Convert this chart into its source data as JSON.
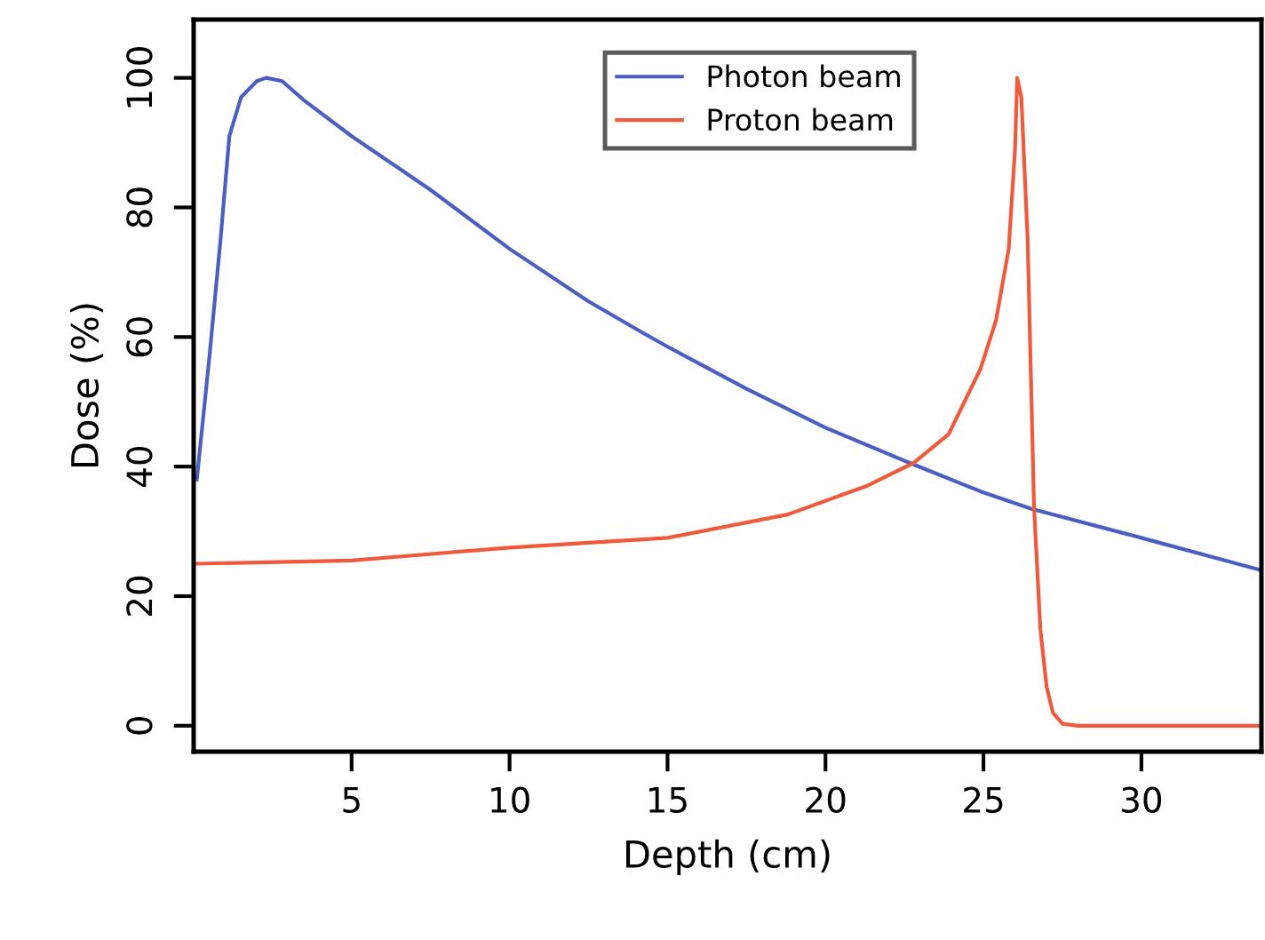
{
  "chart_data": {
    "type": "line",
    "xlabel": "Depth (cm)",
    "ylabel": "Dose (%)",
    "xlim": [
      0,
      33.8
    ],
    "ylim": [
      -4,
      109
    ],
    "xticks": [
      5,
      10,
      15,
      20,
      25,
      30
    ],
    "yticks": [
      0,
      20,
      40,
      60,
      80,
      100
    ],
    "grid": false,
    "legend": "top right",
    "marker": "none",
    "line_style": "solid",
    "series": [
      {
        "name": "Photon beam",
        "color": "#4a5fc1",
        "x": [
          0.1,
          0.5,
          0.85,
          1.13,
          1.5,
          2.0,
          2.3,
          2.8,
          3.5,
          5,
          7.5,
          10,
          12.5,
          14.2,
          15,
          17.5,
          20,
          22.7,
          25,
          26.5,
          30,
          33.8
        ],
        "values": [
          38,
          57,
          75,
          91,
          97,
          99.5,
          100,
          99.5,
          96.5,
          91,
          82.7,
          73.6,
          65.5,
          60.7,
          58.5,
          52,
          46,
          40.5,
          36,
          33.5,
          29,
          24
        ]
      },
      {
        "name": "Proton beam",
        "color": "#f05a3c",
        "x": [
          0,
          5,
          10,
          15,
          18.8,
          21.3,
          22.8,
          23.9,
          24.9,
          25.4,
          25.8,
          26.0,
          26.07,
          26.2,
          26.4,
          26.6,
          26.8,
          27.0,
          27.2,
          27.5,
          28,
          33.8
        ],
        "values": [
          25,
          25.5,
          27.5,
          29,
          32.6,
          37,
          40.6,
          45,
          55,
          62.6,
          73.6,
          89,
          100,
          97,
          75,
          34,
          15,
          6,
          2,
          0.3,
          0,
          0
        ]
      }
    ]
  }
}
